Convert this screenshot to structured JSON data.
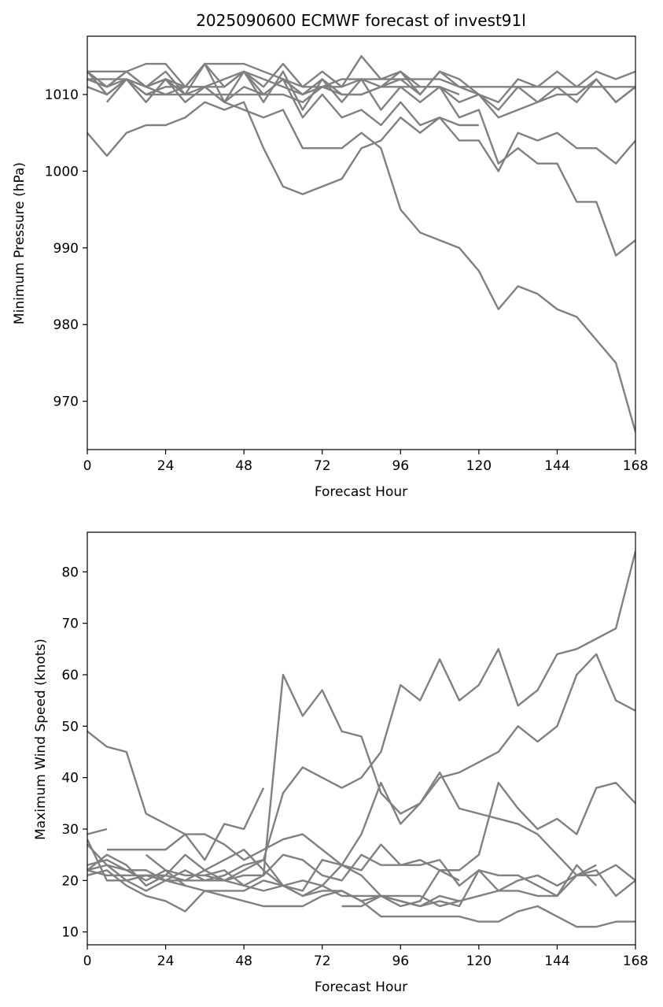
{
  "colors": {
    "series": "#808080",
    "axis": "#000000",
    "background": "#ffffff"
  },
  "chart_data": [
    {
      "type": "line",
      "title": "2025090600 ECMWF forecast of invest91l",
      "xlabel": "Forecast Hour",
      "ylabel": "Minimum Pressure (hPa)",
      "xlim": [
        0,
        168
      ],
      "ylim": [
        963.7,
        1017.6
      ],
      "xticks": [
        0,
        24,
        48,
        72,
        96,
        120,
        144,
        168
      ],
      "yticks": [
        970,
        980,
        990,
        1000,
        1010
      ],
      "series": [
        {
          "x": [
            0,
            6,
            12,
            18,
            24,
            30,
            36,
            42,
            48,
            54,
            60,
            66,
            72,
            78,
            84,
            90,
            96,
            102,
            108,
            114,
            120,
            126,
            132,
            138,
            144,
            150,
            156,
            162,
            168
          ],
          "values": [
            1013,
            1013,
            1013,
            1014,
            1014,
            1011,
            1014,
            1014,
            1014,
            1013,
            1012,
            1011,
            1011,
            1012,
            1012,
            1012,
            1012,
            1012,
            1012,
            1011,
            1011,
            1011,
            1011,
            1011,
            1011,
            1011,
            1011,
            1011,
            1011
          ]
        },
        {
          "x": [
            0,
            6,
            12,
            18,
            24,
            30,
            36,
            42,
            48,
            54,
            60,
            66,
            72,
            78,
            84,
            90,
            96,
            102,
            108,
            114,
            120,
            126,
            132,
            138,
            144,
            150,
            156,
            162,
            168
          ],
          "values": [
            1012,
            1012,
            1012,
            1011,
            1012,
            1010,
            1011,
            1011,
            1013,
            1012,
            1011,
            1010,
            1011,
            1011,
            1012,
            1011,
            1012,
            1010,
            1013,
            1012,
            1010,
            1009,
            1012,
            1011,
            1013,
            1011,
            1013,
            1012,
            1013
          ]
        },
        {
          "x": [
            0,
            6,
            12,
            18,
            24,
            30,
            36,
            42,
            48,
            54,
            60,
            66,
            72,
            78,
            84,
            90,
            96,
            102,
            108,
            114,
            120,
            126,
            132,
            138,
            144,
            150,
            156,
            162,
            168
          ],
          "values": [
            1012,
            1011,
            1013,
            1011,
            1013,
            1010,
            1014,
            1011,
            1013,
            1011,
            1014,
            1011,
            1013,
            1011,
            1015,
            1012,
            1013,
            1010,
            1013,
            1011,
            1010,
            1008,
            1011,
            1009,
            1011,
            1009,
            1012,
            1009,
            1011
          ]
        },
        {
          "x": [
            0,
            6,
            12,
            18,
            24,
            30,
            36,
            42,
            48,
            54,
            60,
            66,
            72,
            78,
            84,
            90,
            96,
            102,
            108,
            114,
            120,
            126,
            132,
            138,
            144,
            150,
            156,
            162,
            168
          ],
          "values": [
            1011,
            1010,
            1012,
            1010,
            1010,
            1010,
            1010,
            1010,
            1010,
            1010,
            1010,
            1009,
            1011,
            1010,
            1010,
            1011,
            1013,
            1011,
            1011,
            1009,
            1010,
            1007,
            1008,
            1009,
            1010,
            1010,
            1012,
            1009,
            1011
          ]
        },
        {
          "x": [
            0,
            6,
            12,
            18,
            24,
            30,
            36,
            42,
            48,
            54,
            60,
            66,
            72,
            78,
            84,
            90,
            96,
            102,
            108,
            114,
            120,
            126,
            132,
            138,
            144,
            150,
            156,
            162,
            168
          ],
          "values": [
            1013,
            1010,
            1012,
            1011,
            1010,
            1011,
            1011,
            1012,
            1013,
            1009,
            1013,
            1008,
            1012,
            1009,
            1012,
            1008,
            1011,
            1009,
            1011,
            1007,
            1008,
            1001,
            1003,
            1001,
            1001,
            996,
            996,
            989,
            991
          ]
        },
        {
          "x": [
            0,
            6,
            12,
            18,
            24,
            30,
            36,
            42,
            48,
            54,
            60,
            66,
            72,
            78,
            84,
            90,
            96,
            102,
            108,
            114,
            120,
            126,
            132,
            138,
            144,
            150,
            156,
            162,
            168
          ],
          "values": [
            1012,
            1011,
            1012,
            1010,
            1011,
            1011,
            1011,
            1009,
            1008,
            1007,
            1008,
            1003,
            1003,
            1003,
            1005,
            1003,
            995,
            992,
            991,
            990,
            987,
            982,
            985,
            984,
            982,
            981,
            978,
            975,
            966
          ]
        },
        {
          "x": [
            0,
            6,
            12,
            18,
            24,
            30,
            36,
            42,
            48,
            54,
            60,
            66,
            72,
            78,
            84,
            90,
            96,
            102,
            108,
            114,
            120,
            126,
            132,
            138,
            144,
            150,
            156,
            162,
            168
          ],
          "values": [
            1005,
            1002,
            1005,
            1006,
            1006,
            1007,
            1009,
            1008,
            1009,
            1003,
            998,
            997,
            998,
            999,
            1003,
            1004,
            1007,
            1005,
            1007,
            1004,
            1004,
            1000,
            1005,
            1004,
            1005,
            1003,
            1003,
            1001,
            1004
          ]
        },
        {
          "x": [
            6,
            12,
            18,
            24,
            30,
            36,
            42,
            48,
            54,
            60,
            66,
            72,
            78,
            84,
            90,
            96,
            102,
            108,
            114,
            120
          ],
          "values": [
            1009,
            1012,
            1009,
            1012,
            1009,
            1011,
            1009,
            1011,
            1010,
            1012,
            1007,
            1010,
            1007,
            1008,
            1006,
            1009,
            1006,
            1007,
            1006,
            1006
          ]
        },
        {
          "x": [
            0,
            6,
            12,
            18,
            24,
            30,
            36,
            42,
            48,
            54,
            60,
            66,
            72,
            78,
            84,
            90,
            96,
            102,
            108,
            114
          ],
          "values": [
            1013,
            1011,
            1013,
            1011,
            1012,
            1011,
            1014,
            1009,
            1013,
            1010,
            1012,
            1010,
            1012,
            1010,
            1010,
            1011,
            1011,
            1011,
            1011,
            1010
          ]
        }
      ]
    },
    {
      "type": "line",
      "title": "",
      "xlabel": "Forecast Hour",
      "ylabel": "Maximum Wind Speed (knots)",
      "xlim": [
        0,
        168
      ],
      "ylim": [
        7.5,
        87.7
      ],
      "xticks": [
        0,
        24,
        48,
        72,
        96,
        120,
        144,
        168
      ],
      "yticks": [
        10,
        20,
        30,
        40,
        50,
        60,
        70,
        80
      ],
      "series": [
        {
          "x": [
            0,
            6,
            12,
            18,
            24,
            30,
            36,
            42,
            48,
            54,
            60,
            66,
            72,
            78,
            84,
            90,
            96,
            102,
            108,
            114,
            120,
            126,
            132,
            138,
            144,
            150,
            156,
            162,
            168
          ],
          "values": [
            49,
            46,
            45,
            33,
            31,
            29,
            29,
            27,
            24,
            26,
            28,
            29,
            26,
            23,
            22,
            27,
            23,
            23,
            24,
            19,
            22,
            18,
            20,
            21,
            19,
            21,
            22,
            17,
            20
          ]
        },
        {
          "x": [
            0,
            6,
            12,
            18,
            24,
            30,
            36,
            42,
            48,
            54,
            60,
            66,
            72,
            78,
            84,
            90,
            96,
            102,
            108,
            114,
            120,
            126,
            132,
            138,
            144,
            150,
            156,
            162,
            168
          ],
          "values": [
            28,
            20,
            20,
            21,
            20,
            20,
            22,
            20,
            21,
            21,
            60,
            52,
            57,
            49,
            48,
            37,
            33,
            35,
            41,
            34,
            33,
            32,
            31,
            29,
            25,
            21,
            21,
            23,
            20
          ]
        },
        {
          "x": [
            0,
            6,
            12,
            18,
            24,
            30,
            36,
            42,
            48,
            54,
            60,
            66,
            72,
            78,
            84,
            90,
            96,
            102,
            108,
            114,
            120,
            126,
            132,
            138,
            144,
            150,
            156,
            162,
            168
          ],
          "values": [
            27,
            23,
            22,
            22,
            20,
            22,
            20,
            20,
            19,
            21,
            25,
            24,
            21,
            20,
            25,
            23,
            23,
            24,
            22,
            22,
            25,
            39,
            34,
            30,
            32,
            29,
            38,
            39,
            35
          ]
        },
        {
          "x": [
            0,
            6,
            12,
            18,
            24,
            30,
            36,
            42,
            48,
            54,
            60,
            66,
            72,
            78,
            84,
            90,
            96,
            102,
            108,
            114,
            120,
            126,
            132,
            138,
            144,
            150,
            156,
            162,
            168
          ],
          "values": [
            22,
            21,
            21,
            21,
            21,
            20,
            20,
            21,
            23,
            24,
            37,
            42,
            40,
            38,
            40,
            45,
            58,
            55,
            63,
            55,
            58,
            65,
            54,
            57,
            64,
            65,
            67,
            69,
            84
          ]
        },
        {
          "x": [
            0,
            6,
            12,
            18,
            24,
            30,
            36,
            42,
            48,
            54,
            60,
            66,
            72,
            78,
            84,
            90,
            96,
            102,
            108,
            114,
            120,
            126,
            132,
            138,
            144,
            150,
            156,
            162,
            168
          ],
          "values": [
            21,
            22,
            19,
            17,
            16,
            14,
            18,
            17,
            16,
            15,
            15,
            15,
            17,
            18,
            16,
            13,
            13,
            13,
            13,
            13,
            12,
            12,
            14,
            15,
            13,
            11,
            11,
            12,
            12
          ]
        },
        {
          "x": [
            0,
            6,
            12,
            18,
            24,
            30,
            36,
            42,
            48,
            54,
            60,
            66,
            72,
            78,
            84,
            90,
            96,
            102,
            108,
            114,
            120,
            126,
            132,
            138,
            144,
            150,
            156,
            162,
            168
          ],
          "values": [
            22,
            23,
            20,
            18,
            20,
            19,
            18,
            18,
            18,
            20,
            19,
            17,
            19,
            23,
            29,
            39,
            31,
            35,
            40,
            41,
            43,
            45,
            50,
            47,
            50,
            60,
            64,
            55,
            53
          ]
        },
        {
          "x": [
            6,
            12,
            18,
            24,
            30,
            36,
            42,
            48,
            54
          ],
          "values": [
            26,
            26,
            26,
            26,
            29,
            24,
            31,
            30,
            38
          ]
        },
        {
          "x": [
            18,
            24,
            30
          ],
          "values": [
            25,
            22,
            19
          ]
        },
        {
          "x": [
            0,
            6,
            12,
            18,
            24,
            30,
            36,
            42,
            48,
            54,
            60,
            66,
            72,
            78,
            84,
            90,
            96,
            102,
            108,
            114
          ],
          "values": [
            23,
            24,
            22,
            20,
            22,
            21,
            21,
            22,
            19,
            18,
            19,
            20,
            19,
            17,
            17,
            17,
            15,
            16,
            22,
            20
          ]
        },
        {
          "x": [
            78,
            84,
            90,
            96,
            102,
            108,
            114
          ],
          "values": [
            15,
            15,
            17,
            16,
            15,
            17,
            16
          ]
        },
        {
          "x": [
            0,
            6,
            12,
            18,
            24,
            30,
            36,
            42,
            48,
            54,
            60,
            66,
            72,
            78,
            84,
            90,
            96,
            102,
            108,
            114,
            120,
            126,
            132,
            138,
            144,
            150,
            156
          ],
          "values": [
            22,
            25,
            23,
            19,
            21,
            25,
            22,
            24,
            26,
            22,
            19,
            17,
            18,
            18,
            16,
            17,
            16,
            15,
            16,
            15,
            22,
            21,
            21,
            19,
            17,
            23,
            19
          ]
        },
        {
          "x": [
            0,
            6
          ],
          "values": [
            29,
            30
          ]
        },
        {
          "x": [
            36,
            42,
            48,
            54,
            60,
            66,
            72,
            78,
            84,
            90,
            96,
            102,
            108,
            114,
            120,
            126,
            132,
            138,
            144,
            150,
            156
          ],
          "values": [
            21,
            20,
            22,
            24,
            19,
            18,
            24,
            23,
            21,
            17,
            17,
            17,
            15,
            16,
            17,
            18,
            18,
            17,
            17,
            21,
            23
          ]
        }
      ]
    }
  ]
}
